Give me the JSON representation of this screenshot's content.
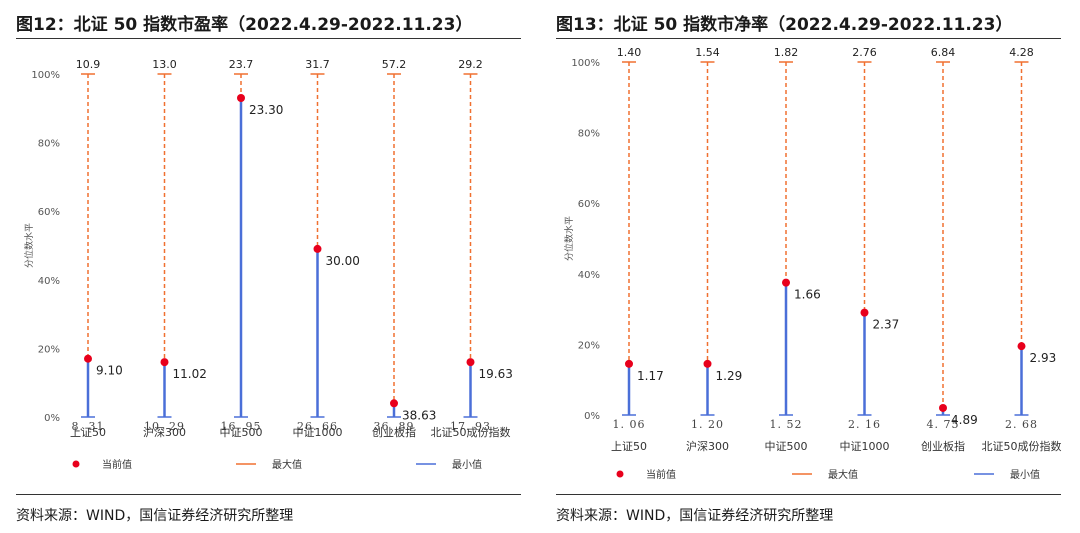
{
  "panels": [
    {
      "title": "图12：北证 50 指数市盈率（2022.4.29-2022.11.23）",
      "source": "资料来源：WIND，国信证券经济研究所整理",
      "chart_data": {
        "type": "range-dot",
        "ylabel": "分位数水平",
        "ylim": [
          0,
          100
        ],
        "yticks": [
          "0%",
          "20%",
          "40%",
          "60%",
          "80%",
          "100%"
        ],
        "categories": [
          "上证50",
          "沪深300",
          "中证500",
          "中证1000",
          "创业板指",
          "北证50成份指数"
        ],
        "max_values": [
          "10.9",
          "13.0",
          "23.7",
          "31.7",
          "57.2",
          "29.2"
        ],
        "min_values": [
          "8. 31",
          "10. 29",
          "16. 95",
          "26. 66",
          "36. 89",
          "17. 93"
        ],
        "current_values": [
          "9.10",
          "11.02",
          "23.30",
          "30.00",
          "38.63",
          "19.63"
        ],
        "current_percentile": [
          17,
          16,
          93,
          49,
          4,
          16
        ],
        "legend": [
          "当前值",
          "最大值",
          "最小值"
        ],
        "colors": {
          "current": "#e8001c",
          "max": "#f07030",
          "min": "#4a6fd8"
        }
      }
    },
    {
      "title": "图13：北证 50 指数市净率（2022.4.29-2022.11.23）",
      "source": "资料来源：WIND，国信证券经济研究所整理",
      "chart_data": {
        "type": "range-dot",
        "ylabel": "分位数水平",
        "ylim": [
          0,
          100
        ],
        "yticks": [
          "0%",
          "20%",
          "40%",
          "60%",
          "80%",
          "100%"
        ],
        "categories": [
          "上证50",
          "沪深300",
          "中证500",
          "中证1000",
          "创业板指",
          "北证50成份指数"
        ],
        "max_values": [
          "1.40",
          "1.54",
          "1.82",
          "2.76",
          "6.84",
          "4.28"
        ],
        "min_values": [
          "1. 06",
          "1. 20",
          "1. 52",
          "2. 16",
          "4. 75",
          "2. 68"
        ],
        "current_values": [
          "1.17",
          "1.29",
          "1.66",
          "2.37",
          "4.89",
          "2.93"
        ],
        "current_percentile": [
          14.5,
          14.5,
          37.5,
          29,
          2,
          19.5
        ],
        "legend": [
          "当前值",
          "最大值",
          "最小值"
        ],
        "colors": {
          "current": "#e8001c",
          "max": "#f07030",
          "min": "#4a6fd8"
        }
      }
    }
  ]
}
